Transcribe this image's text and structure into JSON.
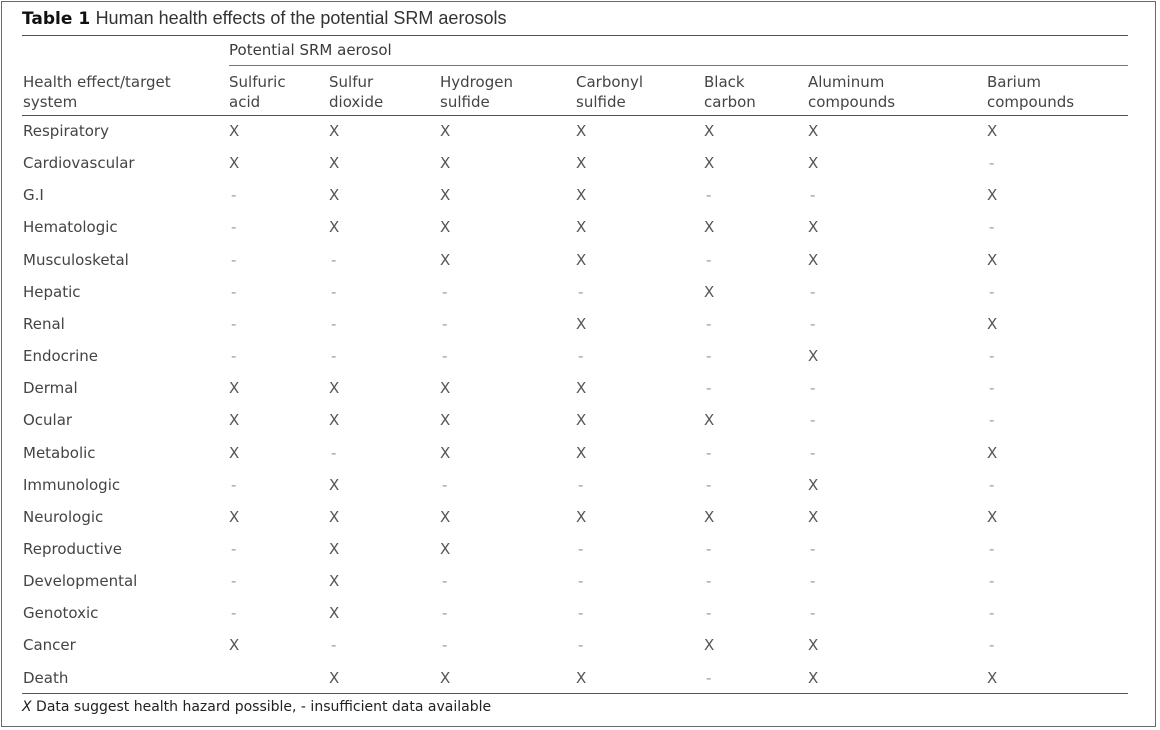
{
  "table": {
    "label": "Table 1",
    "title": "Human health effects of the potential SRM aerosols",
    "group_header": "Potential SRM aerosol",
    "row_header": [
      "Health effect/target",
      "system"
    ],
    "columns": [
      [
        "Sulfuric",
        "acid"
      ],
      [
        "Sulfur",
        "dioxide"
      ],
      [
        "Hydrogen",
        "sulfide"
      ],
      [
        "Carbonyl",
        "sulfide"
      ],
      [
        "Black",
        "carbon"
      ],
      [
        "Aluminum",
        "compounds"
      ],
      [
        "Barium",
        "compounds"
      ]
    ],
    "rows": [
      {
        "label": "Respiratory",
        "cells": [
          "X",
          "X",
          "X",
          "X",
          "X",
          "X",
          "X"
        ]
      },
      {
        "label": "Cardiovascular",
        "cells": [
          "X",
          "X",
          "X",
          "X",
          "X",
          "X",
          "-"
        ]
      },
      {
        "label": "G.I",
        "cells": [
          "-",
          "X",
          "X",
          "X",
          "-",
          "-",
          "X"
        ]
      },
      {
        "label": "Hematologic",
        "cells": [
          "-",
          "X",
          "X",
          "X",
          "X",
          "X",
          "-"
        ]
      },
      {
        "label": "Musculosketal",
        "cells": [
          "-",
          "-",
          "X",
          "X",
          "-",
          "X",
          "X"
        ]
      },
      {
        "label": "Hepatic",
        "cells": [
          "-",
          "-",
          "-",
          "-",
          "X",
          "-",
          "-"
        ]
      },
      {
        "label": "Renal",
        "cells": [
          "-",
          "-",
          "-",
          "X",
          "-",
          "-",
          "X"
        ]
      },
      {
        "label": "Endocrine",
        "cells": [
          "-",
          "-",
          "-",
          "-",
          "-",
          "X",
          "-"
        ]
      },
      {
        "label": "Dermal",
        "cells": [
          "X",
          "X",
          "X",
          "X",
          "-",
          "-",
          "-"
        ]
      },
      {
        "label": "Ocular",
        "cells": [
          "X",
          "X",
          "X",
          "X",
          "X",
          "-",
          "-"
        ]
      },
      {
        "label": "Metabolic",
        "cells": [
          "X",
          "-",
          "X",
          "X",
          "-",
          "-",
          "X"
        ]
      },
      {
        "label": "Immunologic",
        "cells": [
          "-",
          "X",
          "-",
          "-",
          "-",
          "X",
          "-"
        ]
      },
      {
        "label": "Neurologic",
        "cells": [
          "X",
          "X",
          "X",
          "X",
          "X",
          "X",
          "X"
        ]
      },
      {
        "label": "Reproductive",
        "cells": [
          "-",
          "X",
          "X",
          "-",
          "-",
          "-",
          "-"
        ]
      },
      {
        "label": "Developmental",
        "cells": [
          "-",
          "X",
          "-",
          "-",
          "-",
          "-",
          "-"
        ]
      },
      {
        "label": "Genotoxic",
        "cells": [
          "-",
          "X",
          "-",
          "-",
          "-",
          "-",
          "-"
        ]
      },
      {
        "label": "Cancer",
        "cells": [
          "X",
          "-",
          "-",
          "-",
          "X",
          "X",
          "-"
        ]
      },
      {
        "label": "Death",
        "cells": [
          "",
          "X",
          "X",
          "X",
          "-",
          "X",
          "X"
        ]
      }
    ],
    "footnote": {
      "symbol": "X",
      "text": " Data suggest health hazard possible, - insufficient data available"
    }
  }
}
